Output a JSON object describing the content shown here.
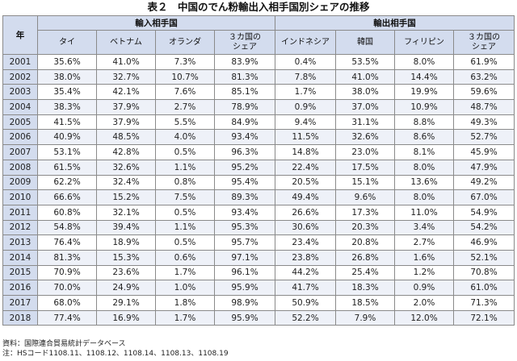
{
  "title": "表２　中国のでん粉輸出入相手国別シェアの推移",
  "table": {
    "year_header": "年",
    "group_import": "輸入相手国",
    "group_export": "輸出相手国",
    "import_cols": [
      "タイ",
      "ベトナム",
      "オランダ",
      "３カ国の\nシェア"
    ],
    "export_cols": [
      "インドネシア",
      "韓国",
      "フィリピン",
      "３カ国の\nシェア"
    ],
    "rows": [
      {
        "year": "2001",
        "cells": [
          "35.6%",
          "41.0%",
          "7.3%",
          "83.9%",
          "0.4%",
          "53.5%",
          "8.0%",
          "61.9%"
        ]
      },
      {
        "year": "2002",
        "cells": [
          "38.0%",
          "32.7%",
          "10.7%",
          "81.3%",
          "7.8%",
          "41.0%",
          "14.4%",
          "63.2%"
        ]
      },
      {
        "year": "2003",
        "cells": [
          "35.4%",
          "42.1%",
          "7.6%",
          "85.1%",
          "1.7%",
          "38.0%",
          "19.9%",
          "59.6%"
        ]
      },
      {
        "year": "2004",
        "cells": [
          "38.3%",
          "37.9%",
          "2.7%",
          "78.9%",
          "0.9%",
          "37.0%",
          "10.9%",
          "48.7%"
        ]
      },
      {
        "year": "2005",
        "cells": [
          "41.5%",
          "37.9%",
          "5.5%",
          "84.9%",
          "9.4%",
          "31.1%",
          "8.8%",
          "49.3%"
        ]
      },
      {
        "year": "2006",
        "cells": [
          "40.9%",
          "48.5%",
          "4.0%",
          "93.4%",
          "11.5%",
          "32.6%",
          "8.6%",
          "52.7%"
        ]
      },
      {
        "year": "2007",
        "cells": [
          "53.1%",
          "42.8%",
          "0.5%",
          "96.3%",
          "14.8%",
          "23.0%",
          "8.1%",
          "45.9%"
        ]
      },
      {
        "year": "2008",
        "cells": [
          "61.5%",
          "32.6%",
          "1.1%",
          "95.2%",
          "22.4%",
          "17.5%",
          "8.0%",
          "47.9%"
        ]
      },
      {
        "year": "2009",
        "cells": [
          "62.2%",
          "32.4%",
          "0.8%",
          "95.4%",
          "20.5%",
          "15.1%",
          "13.6%",
          "49.2%"
        ]
      },
      {
        "year": "2010",
        "cells": [
          "66.6%",
          "15.2%",
          "7.5%",
          "89.3%",
          "49.4%",
          "9.6%",
          "8.0%",
          "67.0%"
        ]
      },
      {
        "year": "2011",
        "cells": [
          "60.8%",
          "32.1%",
          "0.5%",
          "93.4%",
          "26.6%",
          "17.3%",
          "11.0%",
          "54.9%"
        ]
      },
      {
        "year": "2012",
        "cells": [
          "54.8%",
          "39.4%",
          "1.1%",
          "95.3%",
          "30.6%",
          "20.3%",
          "3.4%",
          "54.2%"
        ]
      },
      {
        "year": "2013",
        "cells": [
          "76.4%",
          "18.9%",
          "0.5%",
          "95.7%",
          "23.4%",
          "20.8%",
          "2.7%",
          "46.9%"
        ]
      },
      {
        "year": "2014",
        "cells": [
          "81.3%",
          "15.3%",
          "0.6%",
          "97.1%",
          "23.8%",
          "26.8%",
          "1.6%",
          "52.1%"
        ]
      },
      {
        "year": "2015",
        "cells": [
          "70.9%",
          "23.6%",
          "1.7%",
          "96.1%",
          "44.2%",
          "25.4%",
          "1.2%",
          "70.8%"
        ]
      },
      {
        "year": "2016",
        "cells": [
          "70.0%",
          "24.9%",
          "1.0%",
          "95.9%",
          "41.7%",
          "18.3%",
          "0.9%",
          "61.0%"
        ]
      },
      {
        "year": "2017",
        "cells": [
          "68.0%",
          "29.1%",
          "1.8%",
          "98.9%",
          "50.9%",
          "18.5%",
          "2.0%",
          "71.3%"
        ]
      },
      {
        "year": "2018",
        "cells": [
          "77.4%",
          "16.9%",
          "1.7%",
          "95.9%",
          "52.2%",
          "7.9%",
          "12.0%",
          "72.1%"
        ]
      }
    ]
  },
  "notes": {
    "source": "資料：国際連合貿易統計データベース",
    "note": "注：HSコード1108.11、1108.12、1108.14、1108.13、1108.19"
  }
}
